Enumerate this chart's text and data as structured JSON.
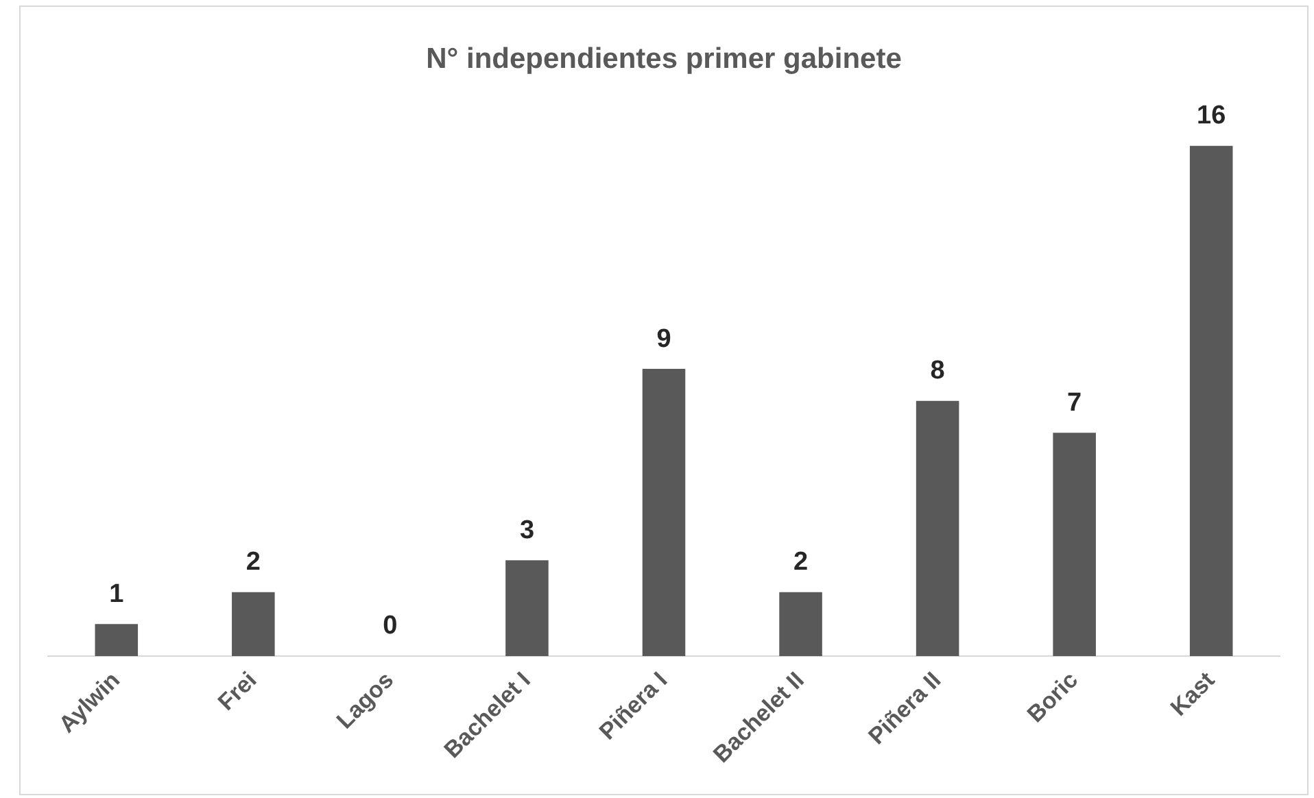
{
  "chart_data": {
    "type": "bar",
    "title": "N° independientes primer gabinete",
    "categories": [
      "Aylwin",
      "Frei",
      "Lagos",
      "Bachelet I",
      "Piñera I",
      "Bachelet II",
      "Piñera II",
      "Boric",
      "Kast"
    ],
    "values": [
      1,
      2,
      0,
      3,
      9,
      2,
      8,
      7,
      16
    ],
    "color": "#595959",
    "data_labels": true,
    "grid": false,
    "legend": false
  }
}
